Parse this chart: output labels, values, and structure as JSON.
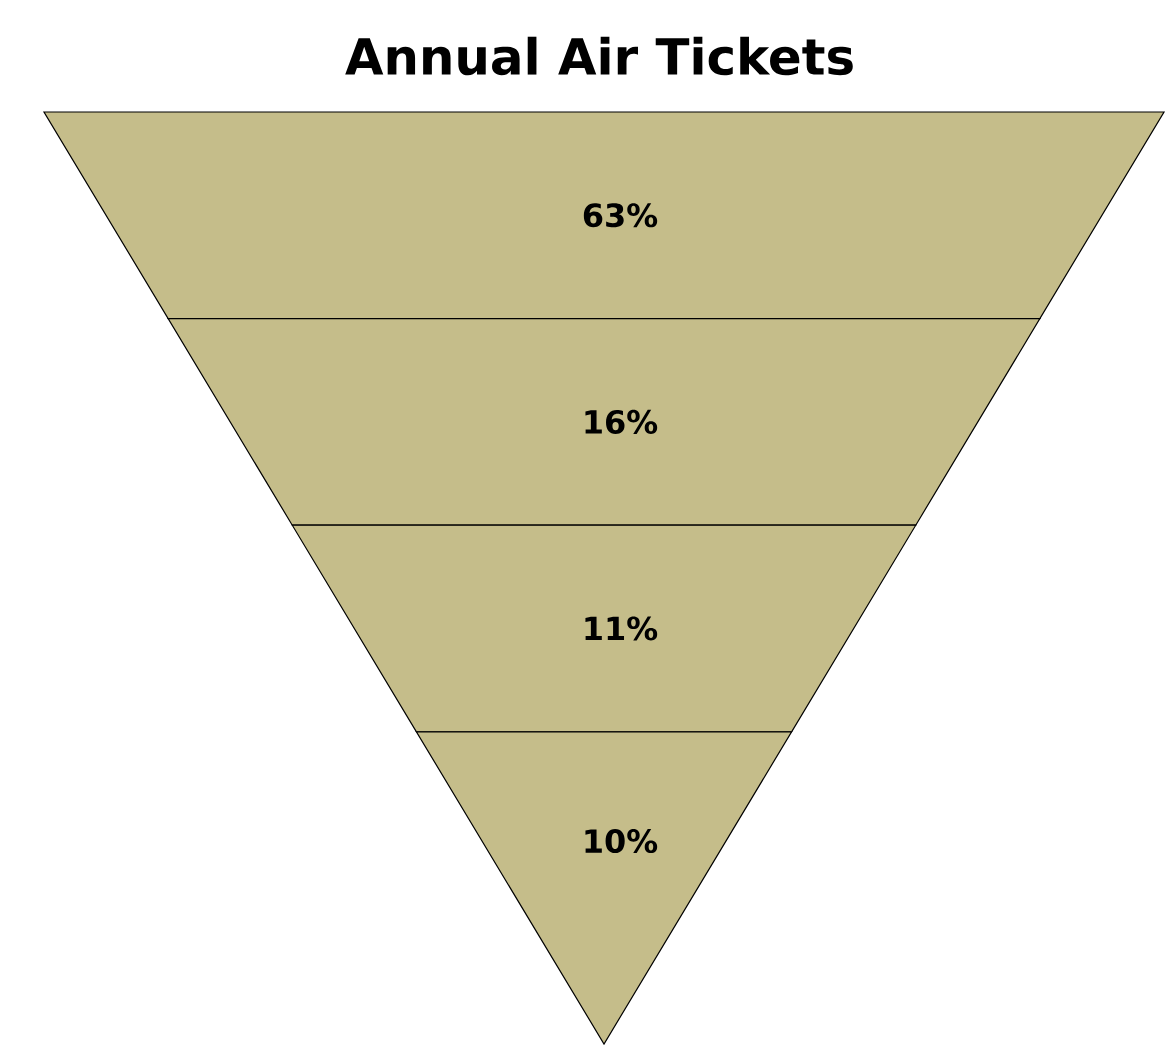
{
  "chart_data": {
    "type": "other",
    "title": "Annual Air Tickets",
    "categories": [
      null,
      null,
      null,
      null
    ],
    "values": [
      63,
      16,
      11,
      10
    ],
    "value_labels": [
      "63%",
      "16%",
      "11%",
      "10%"
    ],
    "color": "#c5bd8a"
  }
}
